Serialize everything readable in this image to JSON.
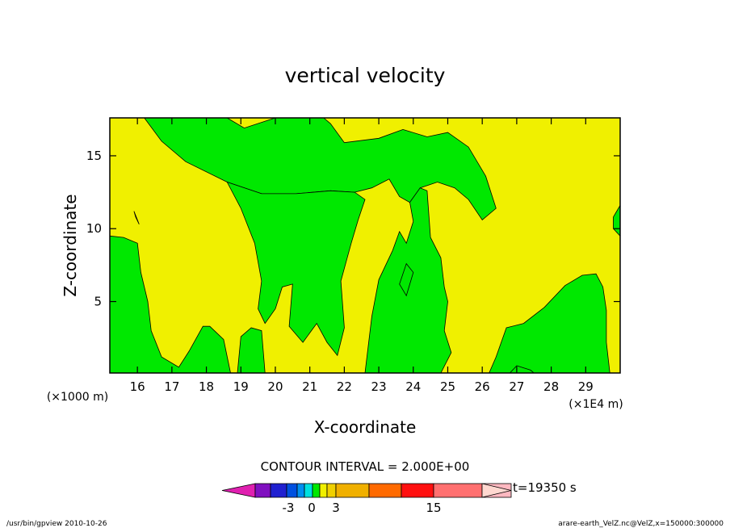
{
  "chart_data": {
    "type": "heatmap",
    "title": "vertical velocity",
    "xlabel": "X-coordinate",
    "ylabel": "Z-coordinate",
    "x_unit_note": "(×1E4 m)",
    "y_unit_note": "(×1000 m)",
    "xlim": [
      15.2,
      30.0
    ],
    "ylim": [
      0.1,
      17.6
    ],
    "x_ticks": [
      "16",
      "17",
      "18",
      "19",
      "20",
      "21",
      "22",
      "23",
      "24",
      "25",
      "26",
      "27",
      "28",
      "29"
    ],
    "y_ticks": [
      "5",
      "10",
      "15"
    ],
    "x_tick_values": [
      16,
      17,
      18,
      19,
      20,
      21,
      22,
      23,
      24,
      25,
      26,
      27,
      28,
      29
    ],
    "y_tick_values": [
      5,
      10,
      15
    ],
    "field_colors": {
      "negative": "#00e800",
      "positive": "#f0f000"
    },
    "green_regions": [
      [
        [
          16.2,
          17.6
        ],
        [
          16.7,
          16.0
        ],
        [
          17.4,
          14.6
        ],
        [
          18.6,
          13.2
        ],
        [
          19.6,
          12.4
        ],
        [
          20.6,
          12.4
        ],
        [
          21.6,
          12.6
        ],
        [
          22.3,
          12.5
        ],
        [
          22.8,
          12.8
        ],
        [
          23.3,
          13.4
        ],
        [
          23.6,
          12.2
        ],
        [
          23.9,
          11.8
        ],
        [
          24.2,
          12.8
        ],
        [
          24.7,
          13.2
        ],
        [
          25.2,
          12.8
        ],
        [
          25.6,
          12.0
        ],
        [
          26.0,
          10.6
        ],
        [
          26.4,
          11.4
        ],
        [
          26.1,
          13.6
        ],
        [
          25.6,
          15.6
        ],
        [
          25.0,
          16.6
        ],
        [
          24.4,
          16.3
        ],
        [
          23.7,
          16.8
        ],
        [
          23.0,
          16.2
        ],
        [
          22.0,
          15.9
        ],
        [
          21.6,
          17.2
        ],
        [
          21.4,
          17.6
        ],
        [
          20.0,
          17.6
        ],
        [
          19.1,
          16.9
        ],
        [
          18.6,
          17.6
        ]
      ],
      [
        [
          18.6,
          13.2
        ],
        [
          19.0,
          11.4
        ],
        [
          19.4,
          9.0
        ],
        [
          19.6,
          6.4
        ],
        [
          19.5,
          4.5
        ],
        [
          19.7,
          3.5
        ],
        [
          20.0,
          4.5
        ],
        [
          20.2,
          6.0
        ],
        [
          20.5,
          6.2
        ],
        [
          20.4,
          3.3
        ],
        [
          20.8,
          2.2
        ],
        [
          21.2,
          3.5
        ],
        [
          21.5,
          2.2
        ],
        [
          21.8,
          1.3
        ],
        [
          22.0,
          3.2
        ],
        [
          21.9,
          6.4
        ],
        [
          22.2,
          9.0
        ],
        [
          22.4,
          10.6
        ],
        [
          22.6,
          12.0
        ],
        [
          22.3,
          12.5
        ],
        [
          21.6,
          12.6
        ],
        [
          20.6,
          12.4
        ],
        [
          19.6,
          12.4
        ]
      ],
      [
        [
          22.6,
          0.1
        ],
        [
          22.8,
          4.0
        ],
        [
          23.0,
          6.5
        ],
        [
          23.4,
          8.5
        ],
        [
          23.6,
          9.8
        ],
        [
          23.8,
          9.0
        ],
        [
          24.0,
          10.5
        ],
        [
          23.9,
          11.8
        ],
        [
          24.2,
          12.8
        ],
        [
          24.4,
          12.6
        ],
        [
          24.5,
          9.4
        ],
        [
          24.8,
          8.0
        ],
        [
          24.9,
          6.0
        ],
        [
          25.0,
          5.0
        ],
        [
          24.9,
          3.0
        ],
        [
          25.1,
          1.5
        ],
        [
          24.8,
          0.1
        ]
      ],
      [
        [
          15.2,
          9.5
        ],
        [
          15.6,
          9.4
        ],
        [
          16.0,
          9.0
        ],
        [
          16.1,
          7.0
        ],
        [
          16.3,
          5.0
        ],
        [
          16.4,
          3.0
        ],
        [
          16.7,
          1.2
        ],
        [
          17.2,
          0.5
        ],
        [
          17.5,
          1.6
        ],
        [
          17.9,
          3.3
        ],
        [
          18.1,
          3.3
        ],
        [
          18.5,
          2.4
        ],
        [
          18.7,
          0.1
        ],
        [
          15.2,
          0.1
        ]
      ],
      [
        [
          18.9,
          0.1
        ],
        [
          19.0,
          2.6
        ],
        [
          19.3,
          3.2
        ],
        [
          19.6,
          3.0
        ],
        [
          19.7,
          0.1
        ]
      ],
      [
        [
          26.2,
          0.1
        ],
        [
          26.4,
          1.2
        ],
        [
          26.7,
          3.2
        ],
        [
          27.2,
          3.5
        ],
        [
          27.8,
          4.6
        ],
        [
          28.4,
          6.1
        ],
        [
          28.9,
          6.8
        ],
        [
          29.3,
          6.9
        ],
        [
          29.5,
          6.0
        ],
        [
          29.6,
          4.4
        ],
        [
          29.6,
          2.2
        ],
        [
          29.7,
          0.1
        ]
      ],
      [
        [
          30.0,
          9.5
        ],
        [
          29.8,
          10.0
        ],
        [
          29.8,
          10.8
        ],
        [
          30.0,
          11.6
        ]
      ],
      [
        [
          15.9,
          11.2
        ],
        [
          16.0,
          10.6
        ],
        [
          16.05,
          10.3
        ],
        [
          15.95,
          10.8
        ]
      ],
      [
        [
          23.6,
          6.2
        ],
        [
          23.8,
          7.6
        ],
        [
          24.0,
          7.0
        ],
        [
          23.8,
          5.4
        ]
      ],
      [
        [
          26.8,
          0.1
        ],
        [
          27.0,
          0.6
        ],
        [
          27.4,
          0.3
        ],
        [
          27.5,
          0.1
        ]
      ]
    ],
    "legend": {
      "heading": "CONTOUR INTERVAL = 2.000E+00",
      "colors": [
        "#e020b0",
        "#8010c0",
        "#2020d0",
        "#0050e0",
        "#0090f0",
        "#00e0e0",
        "#00e800",
        "#f0f000",
        "#f0d000",
        "#f0b000",
        "#ff6a00",
        "#ff1010",
        "#ff7070",
        "#ffb8c0",
        "#ffd8d0"
      ],
      "labels": [
        "-3",
        "0",
        "3",
        "15"
      ],
      "time": "t=19350 s"
    },
    "footer_left": "/usr/bin/gpview  2010-10-26",
    "footer_right": "arare-earth_VelZ.nc@VelZ,x=150000:300000"
  }
}
